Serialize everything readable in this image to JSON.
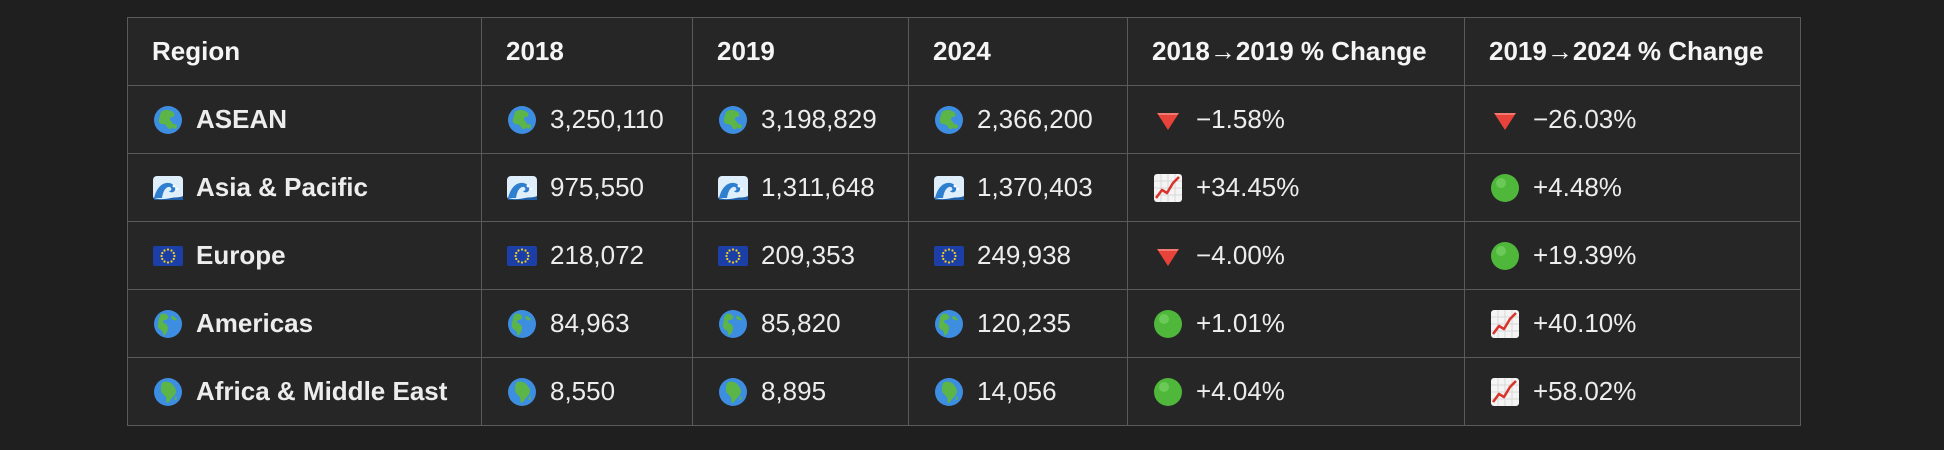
{
  "chart_data": {
    "type": "table",
    "columns": [
      "Region",
      "2018",
      "2019",
      "2024",
      "2018→2019 % Change",
      "2019→2024 % Change"
    ],
    "rows": [
      {
        "region": "ASEAN",
        "region_icon": "globe-asia-icon",
        "v2018": "3,250,110",
        "v2019": "3,198,829",
        "v2024": "2,366,200",
        "chg1": "−1.58%",
        "chg1_icon": "red-triangle-down-icon",
        "chg2": "−26.03%",
        "chg2_icon": "red-triangle-down-icon"
      },
      {
        "region": "Asia & Pacific",
        "region_icon": "wave-icon",
        "v2018": "975,550",
        "v2019": "1,311,648",
        "v2024": "1,370,403",
        "chg1": "+34.45%",
        "chg1_icon": "chart-increasing-icon",
        "chg2": "+4.48%",
        "chg2_icon": "green-circle-icon"
      },
      {
        "region": "Europe",
        "region_icon": "eu-flag-icon",
        "v2018": "218,072",
        "v2019": "209,353",
        "v2024": "249,938",
        "chg1": "−4.00%",
        "chg1_icon": "red-triangle-down-icon",
        "chg2": "+19.39%",
        "chg2_icon": "green-circle-icon"
      },
      {
        "region": "Americas",
        "region_icon": "globe-americas-icon",
        "v2018": "84,963",
        "v2019": "85,820",
        "v2024": "120,235",
        "chg1": "+1.01%",
        "chg1_icon": "green-circle-icon",
        "chg2": "+40.10%",
        "chg2_icon": "chart-increasing-icon"
      },
      {
        "region": "Africa & Middle East",
        "region_icon": "globe-africa-icon",
        "v2018": "8,550",
        "v2019": "8,895",
        "v2024": "14,056",
        "chg1": "+4.04%",
        "chg1_icon": "green-circle-icon",
        "chg2": "+58.02%",
        "chg2_icon": "chart-increasing-icon"
      }
    ]
  }
}
